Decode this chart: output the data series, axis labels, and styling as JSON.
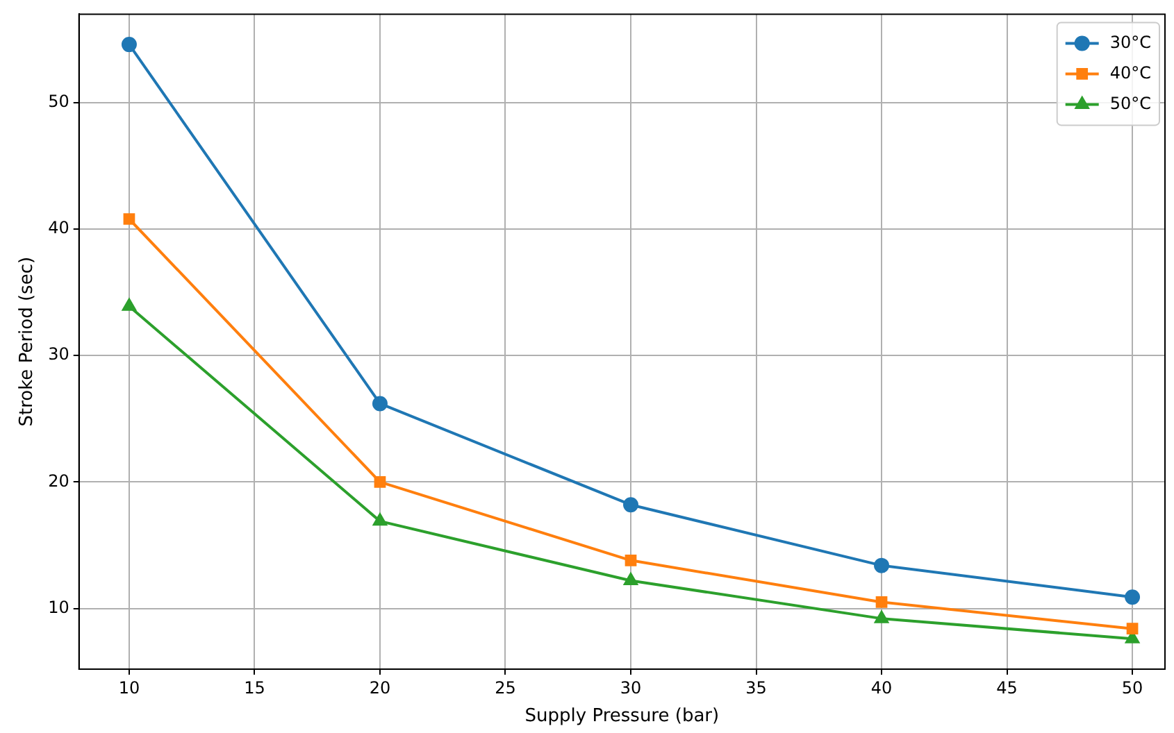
{
  "chart_data": {
    "type": "line",
    "xlabel": "Supply Pressure (bar)",
    "ylabel": "Stroke Period (sec)",
    "x": [
      10,
      20,
      30,
      40,
      50
    ],
    "series": [
      {
        "name": "30°C",
        "color": "#1f77b4",
        "marker": "circle",
        "values": [
          54.6,
          26.2,
          18.2,
          13.4,
          10.9
        ]
      },
      {
        "name": "40°C",
        "color": "#ff7f0e",
        "marker": "square",
        "values": [
          40.8,
          20.0,
          13.8,
          10.5,
          8.4
        ]
      },
      {
        "name": "50°C",
        "color": "#2ca02c",
        "marker": "triangle",
        "values": [
          33.9,
          16.9,
          12.2,
          9.2,
          7.6
        ]
      }
    ],
    "xlim": [
      8,
      51.3
    ],
    "xticks": [
      10,
      15,
      20,
      25,
      30,
      35,
      40,
      45,
      50
    ],
    "ylim": [
      5.2,
      57
    ],
    "yticks": [
      10,
      20,
      30,
      40,
      50
    ],
    "grid": true,
    "legend": "top right",
    "line_style": "solid"
  }
}
